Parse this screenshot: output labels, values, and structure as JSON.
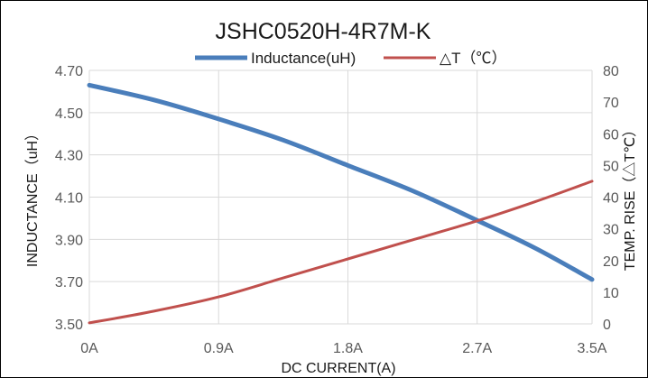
{
  "chart_data": {
    "type": "line",
    "title": "JSHC0520H-4R7M-K",
    "xlabel": "DC  CURRENT(A)",
    "ylabel": "INDUCTANCE（uH）",
    "y2label": "TEMP. RISE（△T℃）",
    "x_tick_labels": [
      "0A",
      "0.9A",
      "1.8A",
      "2.7A",
      "3.5A"
    ],
    "x_ticks": [
      0,
      0.9,
      1.8,
      2.7,
      3.5
    ],
    "xlim": [
      0,
      3.5
    ],
    "y_tick_labels": [
      "3.50",
      "3.70",
      "3.90",
      "4.10",
      "4.30",
      "4.50",
      "4.70"
    ],
    "ylim": [
      3.5,
      4.7
    ],
    "y2_tick_labels": [
      "0",
      "10",
      "20",
      "30",
      "40",
      "50",
      "60",
      "70",
      "80"
    ],
    "y2lim": [
      0,
      80
    ],
    "grid": true,
    "legend_position": "top-center",
    "series": [
      {
        "name": "Inductance(uH)",
        "axis": "left",
        "color": "#4a7ebb",
        "x": [
          0,
          0.45,
          0.9,
          1.35,
          1.8,
          2.25,
          2.7,
          3.1,
          3.5
        ],
        "y": [
          4.63,
          4.56,
          4.47,
          4.37,
          4.25,
          4.13,
          3.99,
          3.86,
          3.71
        ]
      },
      {
        "name": "△T（℃）",
        "axis": "right",
        "color": "#c0504d",
        "x": [
          0,
          0.45,
          0.9,
          1.35,
          1.8,
          2.25,
          2.7,
          3.1,
          3.5
        ],
        "y": [
          0.3,
          4,
          8.5,
          14.5,
          20.5,
          26.5,
          32.5,
          38.5,
          45
        ]
      }
    ]
  }
}
